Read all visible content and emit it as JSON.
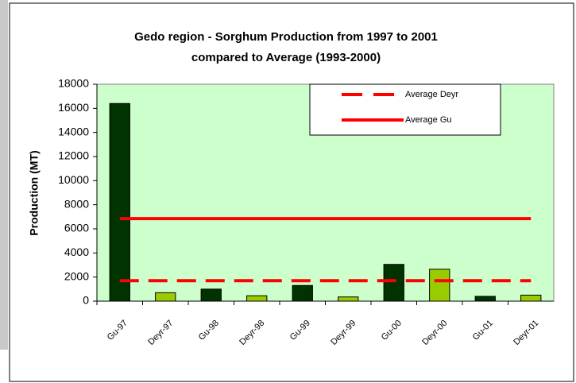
{
  "chart_data": {
    "type": "bar",
    "title": [
      "Gedo region - Sorghum Production from 1997 to 2001",
      "compared to Average (1993-2000)"
    ],
    "ylabel": "Production (MT)",
    "categories": [
      "Gu-97",
      "Deyr-97",
      "Gu-98",
      "Deyr-98",
      "Gu-99",
      "Deyr-99",
      "Gu-00",
      "Deyr-00",
      "Gu-01",
      "Deyr-01"
    ],
    "values": [
      16400,
      700,
      1000,
      450,
      1300,
      350,
      3050,
      2650,
      400,
      500
    ],
    "colors": [
      "#003300",
      "#99cc00",
      "#003300",
      "#99cc00",
      "#003300",
      "#99cc00",
      "#003300",
      "#99cc00",
      "#003300",
      "#99cc00"
    ],
    "lines": [
      {
        "name": "Average Deyr",
        "color": "#ff0000",
        "style": "dashed",
        "values": [
          1700,
          1700,
          1700,
          1700,
          1700,
          1700,
          1700,
          1700,
          1700,
          1700
        ]
      },
      {
        "name": "Average Gu",
        "color": "#ff0000",
        "style": "solid",
        "values": [
          6850,
          6850,
          6850,
          6850,
          6850,
          6850,
          6850,
          6850,
          6850,
          6850
        ]
      }
    ],
    "ylim": [
      0,
      18000
    ],
    "yticks": [
      0,
      2000,
      4000,
      6000,
      8000,
      10000,
      12000,
      14000,
      16000,
      18000
    ],
    "plot_background": "#ccffcc",
    "legend": "upper right"
  }
}
